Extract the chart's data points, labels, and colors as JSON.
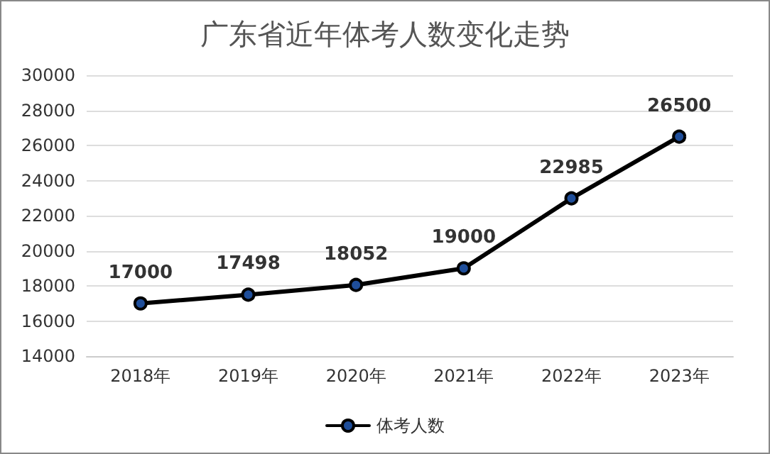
{
  "chart_data": {
    "type": "line",
    "title": "广东省近年体考人数变化走势",
    "categories": [
      "2018年",
      "2019年",
      "2020年",
      "2021年",
      "2022年",
      "2023年"
    ],
    "series": [
      {
        "name": "体考人数",
        "color": "#000000",
        "values": [
          17000,
          17498,
          18052,
          19000,
          22985,
          26500
        ]
      }
    ],
    "ylim": [
      14000,
      30000
    ],
    "yticks": [
      14000,
      16000,
      18000,
      20000,
      22000,
      24000,
      26000,
      28000,
      30000
    ],
    "grid": "y",
    "legend": "bottom",
    "marker": "circle",
    "line_style": "solid",
    "data_labels": true
  }
}
